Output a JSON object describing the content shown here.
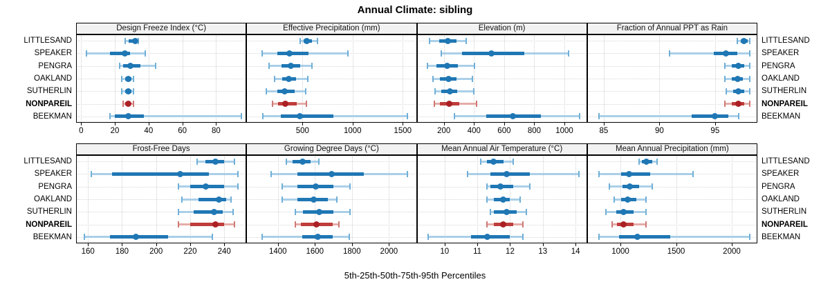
{
  "title": "Annual Climate: sibling",
  "caption": "5th-25th-50th-75th-95th Percentiles",
  "stations": [
    "LITTLESAND",
    "SPEAKER",
    "PENGRA",
    "OAKLAND",
    "SUTHERLIN",
    "NONPAREIL",
    "BEEKMAN"
  ],
  "highlighted_station": "NONPAREIL",
  "percentile_labels": [
    "5th",
    "25th",
    "50th",
    "75th",
    "95th"
  ],
  "colors": {
    "blue_dot": "#1f77b4",
    "blue_iqr": "#1f77b4",
    "blue_whisker": "#a9cfe8",
    "blue_cap": "#6fafd7",
    "red_dot": "#ab2024",
    "red_iqr": "#bf3d3b",
    "red_whisker": "#e5aca7",
    "red_cap": "#cd7875",
    "strip_bg": "#f2f2f2",
    "gridline": "#d4d4d4",
    "border": "#000000"
  },
  "chart_data": [
    {
      "type": "dot-whisker",
      "title": "Design Freeze Index (°C)",
      "row": 0,
      "col": 0,
      "xlim": [
        -3,
        98
      ],
      "ticks": [
        0,
        20,
        40,
        60,
        80
      ],
      "values": [
        [
          26,
          28,
          32,
          33,
          34
        ],
        [
          3,
          17,
          26,
          29,
          38
        ],
        [
          23,
          25,
          29,
          35,
          44
        ],
        [
          24,
          26,
          28,
          30,
          31
        ],
        [
          24,
          26,
          28,
          30,
          31
        ],
        [
          25,
          26,
          28,
          29,
          31
        ],
        [
          17,
          20,
          28,
          37,
          95
        ]
      ]
    },
    {
      "type": "dot-whisker",
      "title": "Effective Precipitation (mm)",
      "row": 0,
      "col": 1,
      "xlim": [
        -60,
        1640
      ],
      "ticks": [
        500,
        1000,
        1500
      ],
      "values": [
        [
          475,
          510,
          545,
          595,
          650
        ],
        [
          100,
          250,
          370,
          560,
          950
        ],
        [
          165,
          290,
          385,
          480,
          595
        ],
        [
          220,
          300,
          360,
          435,
          550
        ],
        [
          140,
          250,
          320,
          420,
          535
        ],
        [
          200,
          255,
          325,
          445,
          540
        ],
        [
          105,
          280,
          475,
          810,
          1550
        ]
      ]
    },
    {
      "type": "dot-whisker",
      "title": "Elevation (m)",
      "row": 0,
      "col": 2,
      "xlim": [
        20,
        1150
      ],
      "ticks": [
        200,
        400,
        600,
        800,
        1000
      ],
      "values": [
        [
          105,
          170,
          225,
          285,
          350
        ],
        [
          185,
          320,
          515,
          735,
          1025
        ],
        [
          90,
          150,
          220,
          295,
          405
        ],
        [
          130,
          175,
          230,
          285,
          390
        ],
        [
          140,
          185,
          240,
          290,
          400
        ],
        [
          135,
          175,
          235,
          300,
          415
        ],
        [
          270,
          480,
          660,
          845,
          1100
        ]
      ]
    },
    {
      "type": "dot-whisker",
      "title": "Fraction of Annual PPT as Rain",
      "row": 0,
      "col": 3,
      "xlim": [
        83.5,
        98.8
      ],
      "ticks": [
        85,
        90,
        95
      ],
      "values": [
        [
          97.0,
          97.3,
          97.6,
          97.9,
          98.1
        ],
        [
          90.9,
          94.9,
          96.0,
          97.0,
          98.1
        ],
        [
          95.9,
          96.5,
          97.1,
          97.6,
          98.1
        ],
        [
          95.9,
          96.5,
          97.0,
          97.5,
          98.1
        ],
        [
          96.0,
          96.6,
          97.1,
          97.6,
          98.1
        ],
        [
          95.9,
          96.5,
          97.1,
          97.6,
          98.1
        ],
        [
          84.6,
          92.9,
          95.0,
          96.2,
          97.1
        ]
      ]
    },
    {
      "type": "dot-whisker",
      "title": "Frost-Free Days",
      "row": 1,
      "col": 0,
      "xlim": [
        153,
        253
      ],
      "ticks": [
        160,
        180,
        200,
        220,
        240
      ],
      "values": [
        [
          224,
          229,
          235,
          240,
          246
        ],
        [
          162,
          174,
          214,
          231,
          248
        ],
        [
          213,
          220,
          229,
          240,
          248
        ],
        [
          215,
          225,
          237,
          241,
          244
        ],
        [
          213,
          222,
          234,
          239,
          245
        ],
        [
          213,
          220,
          235,
          240,
          246
        ],
        [
          158,
          173,
          188,
          207,
          233
        ]
      ]
    },
    {
      "type": "dot-whisker",
      "title": "Growing Degree Days (°C)",
      "row": 1,
      "col": 1,
      "xlim": [
        1230,
        2150
      ],
      "ticks": [
        1400,
        1600,
        1800,
        2000
      ],
      "values": [
        [
          1445,
          1480,
          1535,
          1575,
          1620
        ],
        [
          1365,
          1505,
          1690,
          1865,
          2100
        ],
        [
          1425,
          1505,
          1605,
          1700,
          1790
        ],
        [
          1425,
          1505,
          1595,
          1670,
          1720
        ],
        [
          1495,
          1535,
          1625,
          1700,
          1790
        ],
        [
          1495,
          1525,
          1610,
          1695,
          1730
        ],
        [
          1315,
          1530,
          1615,
          1695,
          1785
        ]
      ]
    },
    {
      "type": "dot-whisker",
      "title": "Mean Annual Air Temperature (°C)",
      "row": 1,
      "col": 2,
      "xlim": [
        9.15,
        14.35
      ],
      "ticks": [
        10,
        11,
        12,
        13,
        14
      ],
      "values": [
        [
          11.1,
          11.3,
          11.5,
          11.8,
          12.1
        ],
        [
          10.7,
          11.4,
          11.9,
          12.6,
          14.1
        ],
        [
          11.3,
          11.4,
          11.7,
          12.1,
          12.6
        ],
        [
          11.3,
          11.5,
          11.8,
          12.0,
          12.3
        ],
        [
          11.4,
          11.5,
          11.9,
          12.2,
          12.5
        ],
        [
          11.3,
          11.5,
          11.8,
          12.1,
          12.4
        ],
        [
          9.5,
          10.8,
          11.3,
          12.0,
          12.4
        ]
      ]
    },
    {
      "type": "dot-whisker",
      "title": "Mean Annual Precipitation (mm)",
      "row": 1,
      "col": 3,
      "xlim": [
        700,
        2230
      ],
      "ticks": [
        1000,
        1500,
        2000
      ],
      "values": [
        [
          1165,
          1190,
          1235,
          1285,
          1330
        ],
        [
          810,
          1005,
          1075,
          1265,
          1650
        ],
        [
          900,
          1020,
          1085,
          1165,
          1285
        ],
        [
          945,
          1005,
          1065,
          1140,
          1230
        ],
        [
          870,
          960,
          1025,
          1115,
          1230
        ],
        [
          925,
          970,
          1030,
          1120,
          1230
        ],
        [
          810,
          990,
          1155,
          1450,
          2160
        ]
      ]
    }
  ]
}
